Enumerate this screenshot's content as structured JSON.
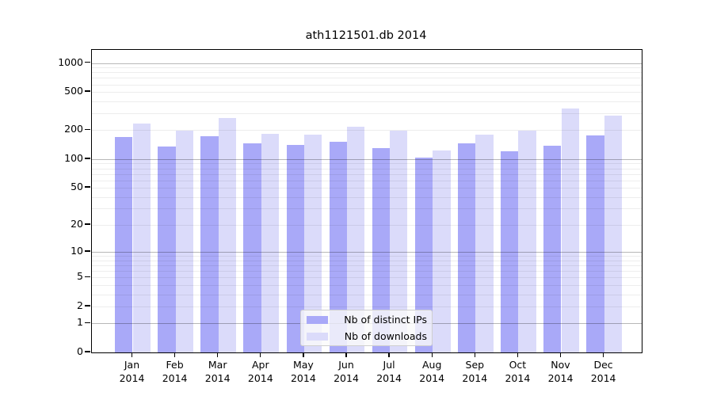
{
  "window": {
    "title": "ath1121501.db 2014"
  },
  "chart_data": {
    "type": "bar",
    "title": "ath1121501.db 2014",
    "xlabel": "",
    "ylabel": "",
    "y_scale": "log1p",
    "y_ticks": [
      0,
      1,
      2,
      5,
      10,
      20,
      50,
      100,
      200,
      500,
      1000
    ],
    "y_major_gridlines": [
      1,
      10,
      100,
      1000
    ],
    "ylim": [
      0,
      1370
    ],
    "grid": true,
    "legend_position": "bottom-center-inside",
    "year": "2014",
    "months": [
      "Jan",
      "Feb",
      "Mar",
      "Apr",
      "May",
      "Jun",
      "Jul",
      "Aug",
      "Sep",
      "Oct",
      "Nov",
      "Dec"
    ],
    "categories": [
      "Jan 2014",
      "Feb 2014",
      "Mar 2014",
      "Apr 2014",
      "May 2014",
      "Jun 2014",
      "Jul 2014",
      "Aug 2014",
      "Sep 2014",
      "Oct 2014",
      "Nov 2014",
      "Dec 2014"
    ],
    "series": [
      {
        "name": "Nb of distinct IPs",
        "color": "#a9a9f8",
        "values": [
          170,
          135,
          174,
          146,
          142,
          153,
          131,
          103,
          147,
          120,
          139,
          178
        ]
      },
      {
        "name": "Nb of downloads",
        "color": "#dbdbfa",
        "values": [
          237,
          200,
          270,
          183,
          181,
          218,
          198,
          122,
          181,
          198,
          340,
          282
        ]
      }
    ]
  },
  "legend": {
    "items": [
      {
        "label": "Nb of distinct IPs",
        "color": "#a9a9f8"
      },
      {
        "label": "Nb of downloads",
        "color": "#dbdbfa"
      }
    ]
  },
  "colors": {
    "background": "#ffffff",
    "axis": "#000000",
    "major_grid": "#b3b3b3",
    "minor_grid": "#ebebeb",
    "grid_over_bars_major": "rgba(0,0,0,0.28)",
    "grid_over_bars_minor": "rgba(0,0,0,0.07)",
    "legend_bg": "rgba(250,250,250,0.80)",
    "legend_border": "#cfcfcf"
  }
}
